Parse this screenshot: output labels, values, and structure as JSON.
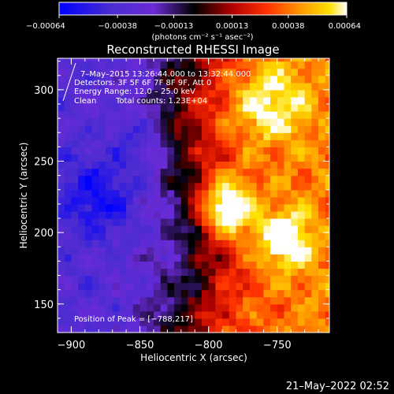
{
  "chart_data": {
    "type": "heatmap",
    "title": "Reconstructed RHESSI Image",
    "xlabel": "Heliocentric X (arcsec)",
    "ylabel": "Heliocentric Y (arcsec)",
    "xlim": [
      -910,
      -712
    ],
    "ylim": [
      130,
      322
    ],
    "x_ticks": [
      -900,
      -850,
      -800,
      -750
    ],
    "x_tick_labels": [
      "−900",
      "−850",
      "−800",
      "−750"
    ],
    "y_ticks": [
      150,
      200,
      250,
      300
    ],
    "y_tick_labels": [
      "150",
      "200",
      "250",
      "300"
    ],
    "colorbar": {
      "range": [
        -0.00064,
        0.00064
      ],
      "ticks": [
        -0.00064,
        -0.00038,
        -0.00013,
        0.00013,
        0.00038,
        0.00064
      ],
      "tick_labels": [
        "−0.00064",
        "−0.00038",
        "−0.00013",
        "0.00013",
        "0.00038",
        "0.00064"
      ],
      "units": "(photons cm⁻² s⁻¹ asec⁻²)",
      "colors": [
        "#0000ff",
        "#6a2bd6",
        "#000000",
        "#b00000",
        "#ff3000",
        "#ffa000",
        "#ffe000",
        "#ffffff"
      ]
    },
    "peak_position": [
      -788,
      217
    ],
    "annotations": {
      "line1": "7–May–2015 13:26:44.000 to 13:32:44.000",
      "line2": "Detectors: 3F 5F 6F 7F 8F 9F, Att 0",
      "line3": "Energy Range: 12.0 – 25.0 keV",
      "line4_method": "Clean",
      "line4_counts": "Total counts: 1.23E+04",
      "peak_label": "Position of Peak = [−788,217]"
    },
    "grid": false,
    "legend": "none"
  },
  "footer": {
    "date": "21–May–2022 02:52"
  },
  "colors": {
    "background": "#000000",
    "text": "#ffffff"
  }
}
